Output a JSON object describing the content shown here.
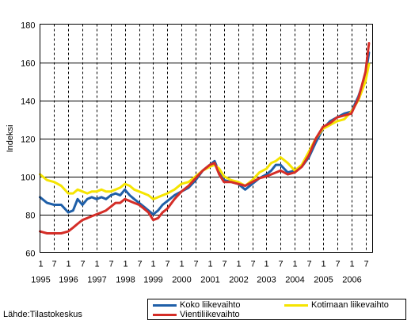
{
  "source": "Lähde:Tilastokeskus",
  "chart_data": {
    "type": "line",
    "title": "",
    "xlabel": "",
    "ylabel": "Indeksi",
    "ylim": [
      60,
      180
    ],
    "yticks": [
      60,
      80,
      100,
      120,
      140,
      160,
      180
    ],
    "xlim": [
      1995.0,
      2006.75
    ],
    "x_month_labels": [
      "1",
      "7"
    ],
    "x_year_labels": [
      "1995",
      "1996",
      "1997",
      "1998",
      "1999",
      "2000",
      "2001",
      "2002",
      "2003",
      "2004",
      "2005",
      "2006"
    ],
    "grid": {
      "horizontal": true,
      "vertical_dashed": true
    },
    "legend_position": "bottom-right",
    "series": [
      {
        "name": "Koko liikevaihto",
        "color": "#1f5fa8",
        "x": [
          1995.0,
          1995.25,
          1995.5,
          1995.75,
          1996.0,
          1996.17,
          1996.33,
          1996.5,
          1996.67,
          1996.83,
          1997.0,
          1997.17,
          1997.33,
          1997.5,
          1997.67,
          1997.83,
          1998.0,
          1998.17,
          1998.33,
          1998.5,
          1998.67,
          1998.83,
          1999.0,
          1999.17,
          1999.33,
          1999.5,
          1999.75,
          2000.0,
          2000.25,
          2000.5,
          2000.75,
          2001.0,
          2001.17,
          2001.33,
          2001.5,
          2001.75,
          2002.0,
          2002.25,
          2002.5,
          2002.75,
          2003.0,
          2003.17,
          2003.33,
          2003.5,
          2003.75,
          2004.0,
          2004.25,
          2004.5,
          2004.75,
          2005.0,
          2005.25,
          2005.5,
          2005.75,
          2006.0,
          2006.25,
          2006.5,
          2006.62
        ],
        "values": [
          89,
          86,
          85,
          85,
          81,
          82,
          88,
          85,
          88,
          89,
          88,
          89,
          88,
          90,
          91,
          90,
          93,
          90,
          88,
          86,
          84,
          82,
          80,
          82,
          85,
          87,
          90,
          92,
          94,
          98,
          103,
          106,
          108,
          102,
          98,
          97,
          96,
          93,
          96,
          99,
          101,
          103,
          106,
          106,
          102,
          103,
          105,
          110,
          118,
          125,
          129,
          131,
          133,
          134,
          142,
          153,
          165
        ]
      },
      {
        "name": "Kotimaan liikevaihto",
        "color": "#f5e400",
        "x": [
          1995.0,
          1995.25,
          1995.5,
          1995.75,
          1996.0,
          1996.17,
          1996.33,
          1996.5,
          1996.67,
          1996.83,
          1997.0,
          1997.17,
          1997.33,
          1997.5,
          1997.67,
          1997.83,
          1998.0,
          1998.17,
          1998.33,
          1998.5,
          1998.67,
          1998.83,
          1999.0,
          1999.17,
          1999.33,
          1999.5,
          1999.75,
          2000.0,
          2000.25,
          2000.5,
          2000.75,
          2001.0,
          2001.17,
          2001.33,
          2001.5,
          2001.75,
          2002.0,
          2002.25,
          2002.5,
          2002.75,
          2003.0,
          2003.17,
          2003.33,
          2003.5,
          2003.75,
          2004.0,
          2004.25,
          2004.5,
          2004.75,
          2005.0,
          2005.25,
          2005.5,
          2005.75,
          2006.0,
          2006.25,
          2006.5,
          2006.62
        ],
        "values": [
          101,
          98,
          97,
          95,
          91,
          91,
          93,
          92,
          91,
          92,
          92,
          93,
          92,
          92,
          93,
          94,
          96,
          95,
          93,
          92,
          91,
          90,
          88,
          89,
          90,
          91,
          93,
          96,
          97,
          100,
          103,
          105,
          106,
          104,
          100,
          98,
          97,
          95,
          98,
          102,
          104,
          107,
          108,
          110,
          107,
          103,
          106,
          113,
          120,
          125,
          127,
          129,
          130,
          134,
          140,
          150,
          159
        ]
      },
      {
        "name": "Vientiliikevaihto",
        "color": "#d42d27",
        "x": [
          1995.0,
          1995.25,
          1995.5,
          1995.75,
          1996.0,
          1996.17,
          1996.33,
          1996.5,
          1996.67,
          1996.83,
          1997.0,
          1997.17,
          1997.33,
          1997.5,
          1997.67,
          1997.83,
          1998.0,
          1998.17,
          1998.33,
          1998.5,
          1998.67,
          1998.83,
          1999.0,
          1999.17,
          1999.33,
          1999.5,
          1999.75,
          2000.0,
          2000.25,
          2000.5,
          2000.75,
          2001.0,
          2001.17,
          2001.33,
          2001.5,
          2001.75,
          2002.0,
          2002.25,
          2002.5,
          2002.75,
          2003.0,
          2003.17,
          2003.33,
          2003.5,
          2003.75,
          2004.0,
          2004.25,
          2004.5,
          2004.75,
          2005.0,
          2005.25,
          2005.5,
          2005.75,
          2006.0,
          2006.25,
          2006.5,
          2006.62
        ],
        "values": [
          71,
          70,
          70,
          70,
          71,
          73,
          75,
          77,
          78,
          79,
          80,
          81,
          82,
          84,
          86,
          86,
          88,
          87,
          86,
          85,
          83,
          81,
          77,
          78,
          81,
          83,
          88,
          92,
          95,
          99,
          103,
          106,
          107,
          101,
          97,
          97,
          96,
          95,
          97,
          99,
          100,
          101,
          102,
          103,
          101,
          102,
          105,
          111,
          120,
          126,
          128,
          131,
          132,
          133,
          141,
          155,
          170
        ]
      }
    ]
  }
}
